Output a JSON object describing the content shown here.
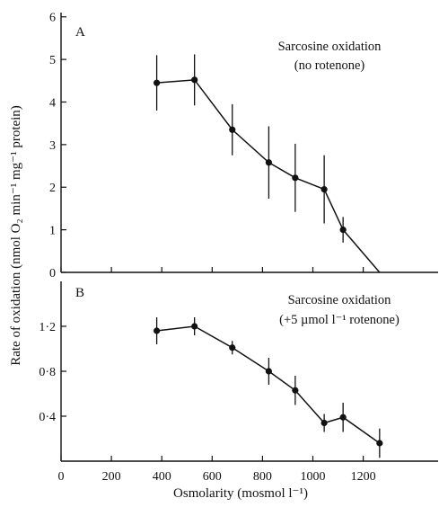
{
  "chart_data": [
    {
      "type": "line",
      "panel_label": "A",
      "annotation_lines": [
        "Sarcosine oxidation",
        "(no rotenone)"
      ],
      "x": [
        380,
        530,
        680,
        825,
        930,
        1045,
        1120
      ],
      "y": [
        4.45,
        4.52,
        3.35,
        2.58,
        2.22,
        1.95,
        1.0
      ],
      "yerr": [
        0.65,
        0.6,
        0.6,
        0.85,
        0.8,
        0.8,
        0.3
      ],
      "extrapolated_line": {
        "from": [
          1120,
          1.0
        ],
        "to": [
          1265,
          0
        ]
      },
      "xlim": [
        0,
        1380
      ],
      "ylim": [
        0,
        6.1
      ],
      "yticks": [
        0,
        1,
        2,
        3,
        4,
        5,
        6
      ],
      "ytick_labels": [
        "0",
        "1",
        "2",
        "3",
        "4",
        "5",
        "6"
      ]
    },
    {
      "type": "line",
      "panel_label": "B",
      "annotation_lines": [
        "Sarcosine oxidation",
        "(+5 µmol l⁻¹ rotenone)"
      ],
      "x": [
        380,
        530,
        680,
        825,
        930,
        1045,
        1120,
        1265
      ],
      "y": [
        1.16,
        1.2,
        1.01,
        0.8,
        0.63,
        0.34,
        0.39,
        0.16
      ],
      "yerr": [
        0.12,
        0.08,
        0.06,
        0.12,
        0.13,
        0.08,
        0.13,
        0.13
      ],
      "xlim": [
        0,
        1380
      ],
      "ylim": [
        0,
        1.6
      ],
      "yticks": [
        0.4,
        0.8,
        1.2
      ],
      "ytick_labels": [
        "0·4",
        "0·8",
        "1·2"
      ]
    }
  ],
  "axes": {
    "xticks": [
      0,
      200,
      400,
      600,
      800,
      1000,
      1200
    ],
    "xtick_labels": [
      "0",
      "200",
      "400",
      "600",
      "800",
      "1000",
      "1200"
    ],
    "xlabel": "Osmolarity (mosmol l⁻¹)",
    "ylabel": "Rate of oxidation (nmol O₂ min⁻¹ mg⁻¹ protein)"
  }
}
